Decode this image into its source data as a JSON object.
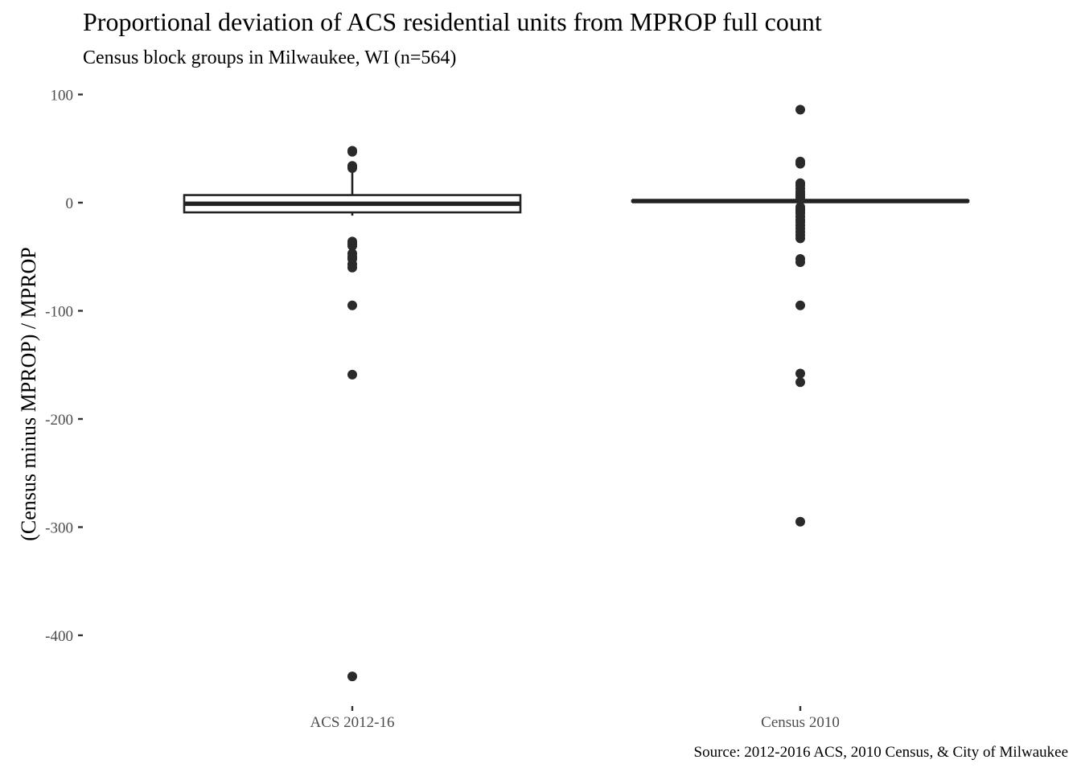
{
  "chart_data": {
    "type": "boxplot",
    "title": "Proportional deviation of ACS residential units from MPROP full count",
    "subtitle": "Census block groups in Milwaukee, WI (n=564)",
    "xlabel": "",
    "ylabel": "(Census minus MPROP) / MPROP",
    "caption": "Source: 2012-2016 ACS, 2010 Census, & City of Milwaukee",
    "ylim": [
      -460,
      103
    ],
    "yticks": [
      100,
      0,
      -100,
      -200,
      -300,
      -400
    ],
    "ytick_labels": [
      "100",
      "0",
      "-100",
      "-200",
      "-300",
      "-400"
    ],
    "grid": false,
    "categories": [
      "ACS 2012-16",
      "Census 2010"
    ],
    "series": [
      {
        "name": "ACS 2012-16",
        "q1": -9,
        "median": -1,
        "q3": 7,
        "whisker_low": -12,
        "whisker_high": 8,
        "whisker_high_end": 31,
        "outliers": [
          48,
          47,
          34,
          33,
          32,
          -36,
          -38,
          -40,
          -47,
          -50,
          -52,
          -57,
          -60,
          -95,
          -159,
          -438
        ]
      },
      {
        "name": "Census 2010",
        "q1": 1,
        "median": 1.5,
        "q3": 2,
        "whisker_low": 1,
        "whisker_high": 2,
        "outliers": [
          86,
          38,
          36,
          18,
          16,
          13,
          10,
          8,
          6,
          4,
          -4,
          -6,
          -8,
          -10,
          -13,
          -16,
          -18,
          -21,
          -24,
          -27,
          -30,
          -33,
          -52,
          -55,
          -95,
          -158,
          -166,
          -295
        ]
      }
    ]
  }
}
